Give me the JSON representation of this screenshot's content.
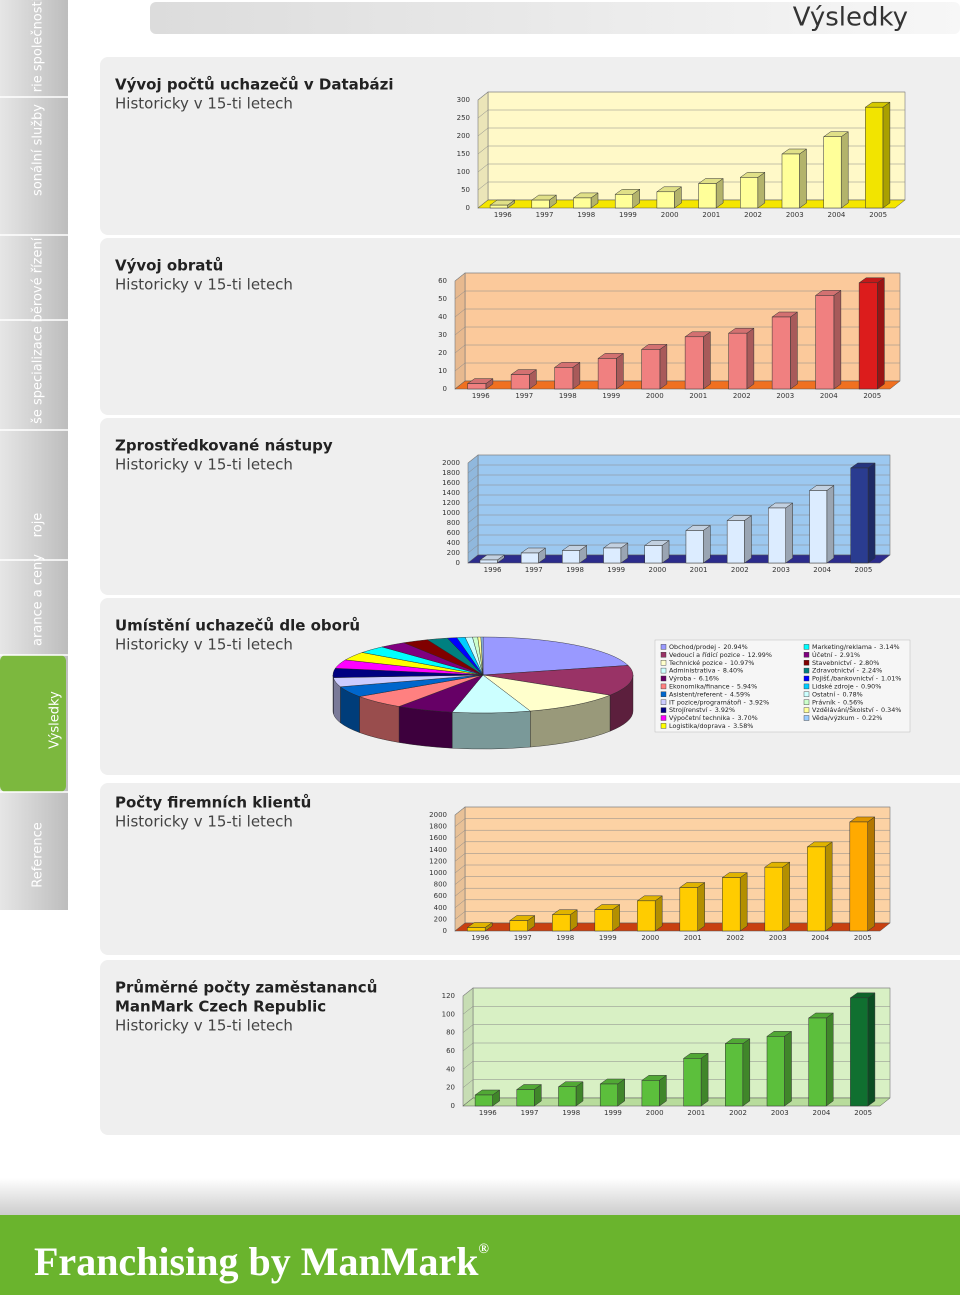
{
  "header": {
    "title": "Výsledky"
  },
  "nav": {
    "tabs": [
      "rie společnosti",
      "sonální služby",
      "běrové řízení",
      "še specializace",
      "roje",
      "arance a ceny",
      "Výsledky",
      "Reference"
    ]
  },
  "chart_data": [
    {
      "type": "bar",
      "title": "Vývoj počtů uchazečů v Databázi",
      "subtitle": "Historicky v 15-ti letech",
      "categories": [
        "1996",
        "1997",
        "1998",
        "1999",
        "2000",
        "2001",
        "2002",
        "2003",
        "2004",
        "2005"
      ],
      "values": [
        8,
        22,
        28,
        38,
        45,
        68,
        85,
        150,
        198,
        280
      ],
      "ylim": [
        0,
        300
      ],
      "yticks": [
        0,
        50,
        100,
        150,
        200,
        250,
        300
      ],
      "color": "#ffff99",
      "accent_color": "#f2e400",
      "wall_color": "#fff9c8",
      "floor_color": "#f5e600",
      "grid": true
    },
    {
      "type": "bar",
      "title": "Vývoj obratů",
      "subtitle": "Historicky v 15-ti letech",
      "categories": [
        "1996",
        "1997",
        "1998",
        "1999",
        "2000",
        "2001",
        "2002",
        "2003",
        "2004",
        "2005"
      ],
      "values": [
        3,
        8,
        12,
        17,
        22,
        29,
        31,
        40,
        52,
        59
      ],
      "ylim": [
        0,
        60
      ],
      "yticks": [
        0,
        10,
        20,
        30,
        40,
        50,
        60
      ],
      "color": "#f08080",
      "accent_color": "#dc1c1c",
      "wall_color": "#fbc99b",
      "floor_color": "#f07020",
      "grid": true
    },
    {
      "type": "bar",
      "title": "Zprostředkované nástupy",
      "subtitle": "Historicky v 15-ti letech",
      "categories": [
        "1996",
        "1997",
        "1998",
        "1999",
        "2000",
        "2001",
        "2002",
        "2003",
        "2004",
        "2005"
      ],
      "values": [
        60,
        200,
        250,
        300,
        350,
        650,
        850,
        1100,
        1450,
        1900
      ],
      "ylim": [
        0,
        2000
      ],
      "yticks": [
        0,
        200,
        400,
        600,
        800,
        1000,
        1200,
        1400,
        1600,
        1800,
        2000
      ],
      "color": "#dcecff",
      "accent_color": "#2a3c90",
      "wall_color": "#9cc8f0",
      "floor_color": "#2c2c8c",
      "grid": true
    },
    {
      "type": "pie",
      "title": "Umístění uchazečů dle oborů",
      "subtitle": "Historicky v 15-ti letech",
      "categories": [
        "Obchod/prodej -",
        "Vedoucí a řídící pozice -",
        "Technické pozice -",
        "Administrativa -",
        "Výroba -",
        "Ekonomika/finance -",
        "Asistent/referent -",
        "IT pozice/programátoři -",
        "Strojírenství -",
        "Výpočetní technika -",
        "Logistika/doprava -",
        "Marketing/reklama -",
        "Účetní -",
        "Stavebnictví -",
        "Zdravotnictví -",
        "Pojišť./bankovnictví -",
        "Lidské zdroje -",
        "Ostatní -",
        "Právník -",
        "Vzdělávání/Školství -",
        "Věda/výzkum -"
      ],
      "values": [
        20.94,
        12.99,
        10.97,
        8.4,
        6.16,
        5.94,
        4.59,
        3.92,
        3.92,
        3.7,
        3.58,
        3.14,
        2.91,
        2.8,
        2.24,
        1.01,
        0.9,
        0.78,
        0.56,
        0.34,
        0.22
      ],
      "value_labels": [
        "20.94%",
        "12.99%",
        "10.97%",
        "8.40%",
        "6.16%",
        "5.94%",
        "4.59%",
        "3.92%",
        "3.92%",
        "3.70%",
        "3.58%",
        "3.14%",
        "2.91%",
        "2.80%",
        "2.24%",
        "1.01%",
        "0.90%",
        "0.78%",
        "0.56%",
        "0.34%",
        "0.22%"
      ],
      "colors": [
        "#9999ff",
        "#993366",
        "#ffffcc",
        "#ccffff",
        "#660066",
        "#ff8080",
        "#0066cc",
        "#ccccff",
        "#000080",
        "#ff00ff",
        "#ffff00",
        "#00ffff",
        "#800080",
        "#800000",
        "#008080",
        "#0000ff",
        "#00ccff",
        "#ccffff",
        "#ccffcc",
        "#ffff99",
        "#99ccff"
      ]
    },
    {
      "type": "bar",
      "title": "Počty firemních klientů",
      "subtitle": "Historicky v 15-ti letech",
      "categories": [
        "1996",
        "1997",
        "1998",
        "1999",
        "2000",
        "2001",
        "2002",
        "2003",
        "2004",
        "2005"
      ],
      "values": [
        60,
        180,
        280,
        370,
        520,
        750,
        920,
        1100,
        1450,
        1880
      ],
      "ylim": [
        0,
        2000
      ],
      "yticks": [
        0,
        200,
        400,
        600,
        800,
        1000,
        1200,
        1400,
        1600,
        1800,
        2000
      ],
      "color": "#ffcc00",
      "accent_color": "#ffaa00",
      "wall_color": "#fcd2a4",
      "floor_color": "#c84010",
      "grid": true
    },
    {
      "type": "bar",
      "title": [
        "Průměrné počty zaměstananců",
        "ManMark Czech Republic"
      ],
      "subtitle": "Historicky v 15-ti letech",
      "categories": [
        "1996",
        "1997",
        "1998",
        "1999",
        "2000",
        "2001",
        "2002",
        "2003",
        "2004",
        "2005"
      ],
      "values": [
        12,
        18,
        21,
        24,
        28,
        52,
        68,
        76,
        96,
        118
      ],
      "ylim": [
        0,
        120
      ],
      "yticks": [
        0,
        20,
        40,
        60,
        80,
        100,
        120
      ],
      "color": "#5cbf3c",
      "accent_color": "#107030",
      "wall_color": "#d8f0c4",
      "floor_color": "#b8dc9c",
      "grid": true
    }
  ],
  "footer": {
    "brand": "Franchising by ManMark",
    "mark": "®"
  }
}
